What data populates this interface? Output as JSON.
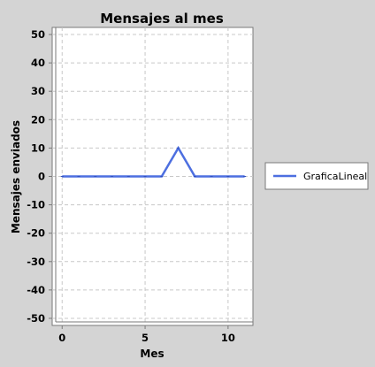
{
  "chart_data": {
    "type": "line",
    "title": "Mensajes al mes",
    "xlabel": "Mes",
    "ylabel": "Mensajes enviados",
    "xlim": [
      -0.6,
      11.5
    ],
    "ylim": [
      -52.5,
      52.5
    ],
    "xticks": [
      0,
      5,
      10
    ],
    "yticks": [
      50,
      40,
      30,
      20,
      10,
      0,
      -10,
      -20,
      -30,
      -40,
      -50
    ],
    "grid": true,
    "legend_position": "right",
    "series": [
      {
        "name": "GraficaLineal",
        "color": "#4d6fe0",
        "x": [
          0,
          1,
          2,
          3,
          4,
          5,
          6,
          7,
          8,
          9,
          10,
          11
        ],
        "y": [
          0,
          0,
          0,
          0,
          0,
          0,
          0,
          10,
          0,
          0,
          0,
          0
        ]
      }
    ]
  }
}
